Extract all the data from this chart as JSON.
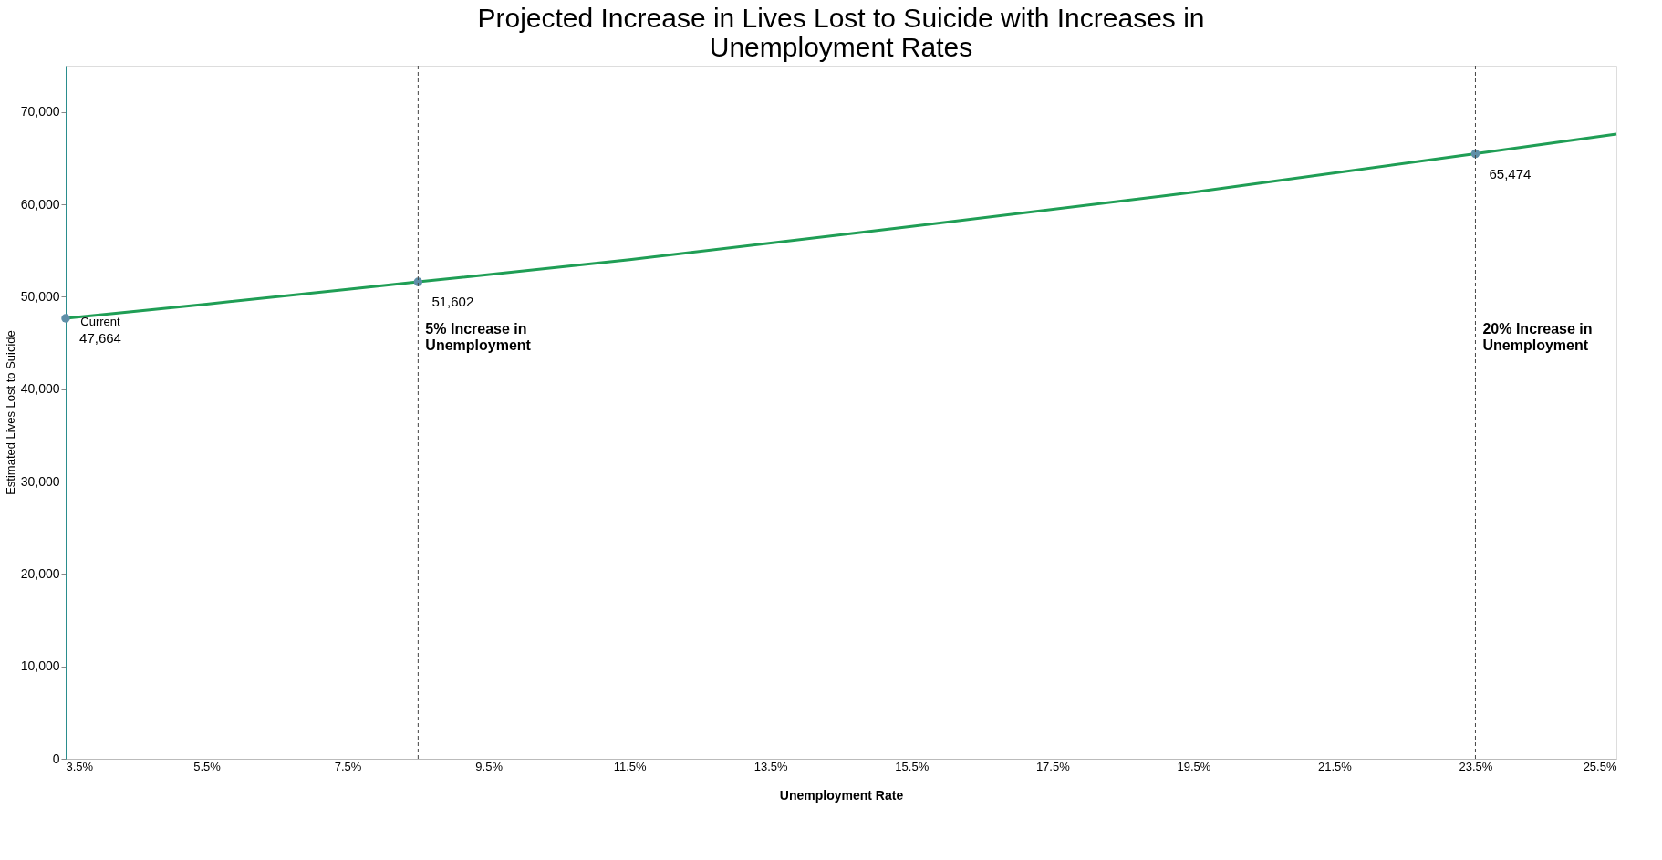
{
  "chart_data": {
    "type": "line",
    "title": "Projected Increase in Lives Lost to Suicide with Increases in Unemployment Rates",
    "xlabel": "Unemployment Rate",
    "ylabel": "Estimated Lives Lost to Suicide",
    "x": [
      3.5,
      5.5,
      7.5,
      8.5,
      11.5,
      15.5,
      19.5,
      23.5,
      25.5
    ],
    "series": [
      {
        "color": "#1f9e55",
        "values": [
          47664,
          49200,
          50800,
          51602,
          54000,
          57600,
          61300,
          65474,
          67600
        ],
        "value_labels": [
          "47,664",
          null,
          null,
          "51,602",
          null,
          null,
          null,
          "65,474",
          null
        ]
      }
    ],
    "xlim": [
      3.5,
      25.5
    ],
    "xticks": [
      {
        "value": 3.5,
        "label": "3.5%"
      },
      {
        "value": 5.5,
        "label": "5.5%"
      },
      {
        "value": 7.5,
        "label": "7.5%"
      },
      {
        "value": 9.5,
        "label": "9.5%"
      },
      {
        "value": 11.5,
        "label": "11.5%"
      },
      {
        "value": 13.5,
        "label": "13.5%"
      },
      {
        "value": 15.5,
        "label": "15.5%"
      },
      {
        "value": 17.5,
        "label": "17.5%"
      },
      {
        "value": 19.5,
        "label": "19.5%"
      },
      {
        "value": 21.5,
        "label": "21.5%"
      },
      {
        "value": 23.5,
        "label": "23.5%"
      },
      {
        "value": 25.5,
        "label": "25.5%"
      }
    ],
    "ylim": [
      0,
      75000
    ],
    "yticks": [
      0,
      {
        "value": 10000,
        "label": "10,000"
      },
      {
        "value": 20000,
        "label": "20,000"
      },
      {
        "value": 30000,
        "label": "30,000"
      },
      {
        "value": 40000,
        "label": "40,000"
      },
      {
        "value": 50000,
        "label": "50,000"
      },
      {
        "value": 60000,
        "label": "60,000"
      },
      {
        "value": 70000,
        "label": "70,000"
      }
    ],
    "ref_lines": [
      {
        "axis": "x",
        "value": 8.5,
        "label": "5% Increase in Unemployment",
        "line_style": "dashed"
      },
      {
        "axis": "x",
        "value": 23.5,
        "label": "20% Increase in Unemployment",
        "line_style": "dashed"
      }
    ],
    "annotations": [
      {
        "text": "Current",
        "x": 3.5,
        "y": 47664
      }
    ],
    "line_style": "solid",
    "grid": false
  }
}
